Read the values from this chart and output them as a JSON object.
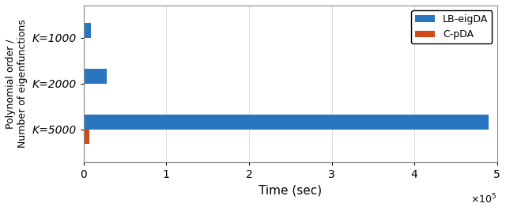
{
  "categories": [
    "K=5000",
    "K=2000",
    "K=1000"
  ],
  "lb_eigda": [
    490000,
    28000,
    9000
  ],
  "c_pda": [
    7000,
    1200,
    400
  ],
  "lb_color": "#2876C0",
  "c_pda_color": "#D2491A",
  "xlabel": "Time (sec)",
  "ylabel": "Polynomial order /\nNumber of eigenfunctions",
  "xlim": [
    0,
    500000
  ],
  "legend_labels": [
    "LB-eigDA",
    "C-pDA"
  ],
  "bar_height": 0.32,
  "background_color": "#ffffff",
  "grid_color": "#d0d0d0",
  "fontsize_tick": 10,
  "fontsize_label": 11,
  "fontsize_ylabel": 9
}
